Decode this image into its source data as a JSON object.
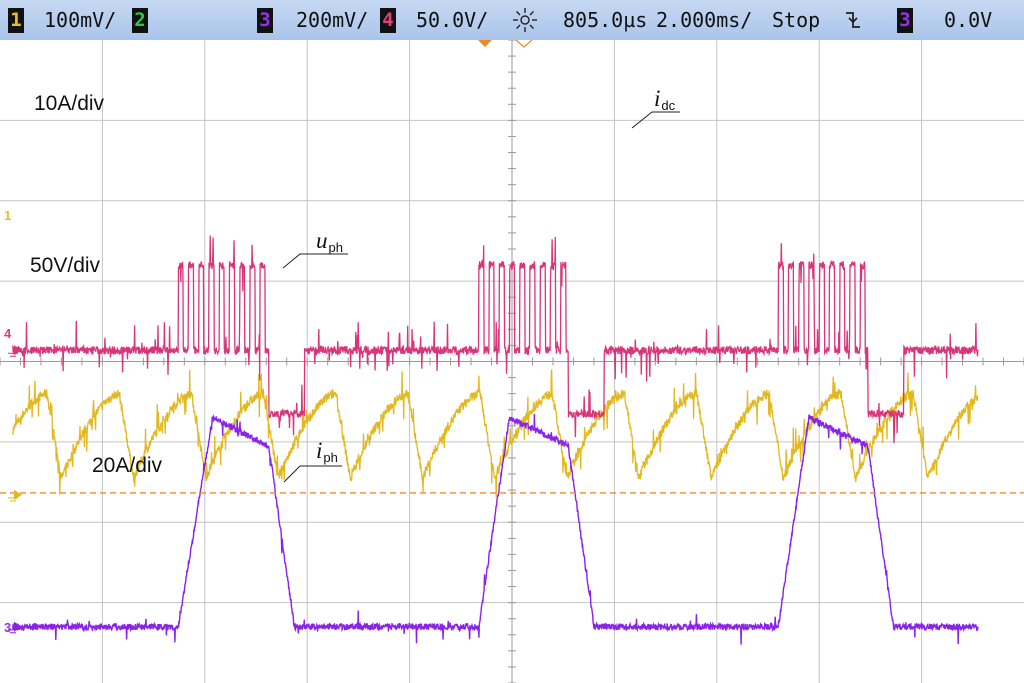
{
  "status_bar": {
    "ch1": {
      "num": "1",
      "scale": "100mV/",
      "color": "#e8c21a"
    },
    "ch2": {
      "num": "2",
      "color": "#2ec845"
    },
    "ch3": {
      "num": "3",
      "scale": "200mV/",
      "color": "#9b2cf0"
    },
    "ch4": {
      "num": "4",
      "scale": "50.0V/",
      "color": "#e2407a"
    },
    "trigger_icon": "sun-trigger-icon",
    "time_offset": "805.0µs",
    "time_scale": "2.000ms/",
    "run_state": "Stop",
    "trigger_slope_icon": "falling-edge-icon",
    "trigger_source": {
      "num": "3",
      "color": "#9b2cf0"
    },
    "trigger_level": "0.0V"
  },
  "annotations": {
    "idc_scale": "10A/div",
    "uph_scale": "50V/div",
    "iph_scale": "20A/div",
    "idc": {
      "symbol": "i",
      "sub": "dc"
    },
    "uph": {
      "symbol": "u",
      "sub": "ph"
    },
    "iph": {
      "symbol": "i",
      "sub": "ph"
    }
  },
  "channel_markers": {
    "ch1": {
      "label": "1",
      "color": "#e8c21a"
    },
    "ch4": {
      "label": "4",
      "color": "#e2407a"
    },
    "ch3": {
      "label": "3",
      "color": "#9b2cf0"
    }
  },
  "chart_data": {
    "type": "line",
    "grid": true,
    "grid_divisions": {
      "x": 10,
      "y": 8
    },
    "time_per_div_ms": 2.0,
    "x_unit": "ms",
    "xlim": [
      0,
      20
    ],
    "trigger_level_line_color": "#f08a24",
    "series": [
      {
        "name": "idc",
        "color": "#e3b81f",
        "scale": "10A/div",
        "type": "sawtooth",
        "ground_div": 2.34,
        "period_ms": 1.41,
        "first_trough_ms": 1.2,
        "trough_div": 2.55,
        "peak_div": 3.6,
        "rise_fraction": 0.8,
        "noise_div": 0.12
      },
      {
        "name": "uph",
        "color": "#d8357a",
        "scale": "50V/div",
        "type": "switching-voltage",
        "ground_div": 4.14,
        "baseline_div": 4.14,
        "high_div": 5.2,
        "low_div": 3.35,
        "noise_div": 0.1,
        "cycles": [
          {
            "pwm_start_ms": 3.48,
            "pwm_end_ms": 5.25,
            "low_end_ms": 5.95
          },
          {
            "pwm_start_ms": 9.35,
            "pwm_end_ms": 11.1,
            "low_end_ms": 11.8
          },
          {
            "pwm_start_ms": 15.2,
            "pwm_end_ms": 16.95,
            "low_end_ms": 17.65
          }
        ]
      },
      {
        "name": "iph",
        "color": "#8a22e8",
        "scale": "20A/div",
        "type": "current-pulse",
        "ground_div": 0.7,
        "peak_div": 3.3,
        "shoulder_div": 2.95,
        "noise_div": 0.08,
        "pulses": [
          {
            "rise_start_ms": 3.48,
            "peak_ms": 4.15,
            "fall_start_ms": 5.25,
            "fall_end_ms": 5.75
          },
          {
            "rise_start_ms": 9.35,
            "peak_ms": 9.95,
            "fall_start_ms": 11.1,
            "fall_end_ms": 11.6
          },
          {
            "rise_start_ms": 15.2,
            "peak_ms": 15.8,
            "fall_start_ms": 16.95,
            "fall_end_ms": 17.45
          }
        ]
      }
    ]
  }
}
